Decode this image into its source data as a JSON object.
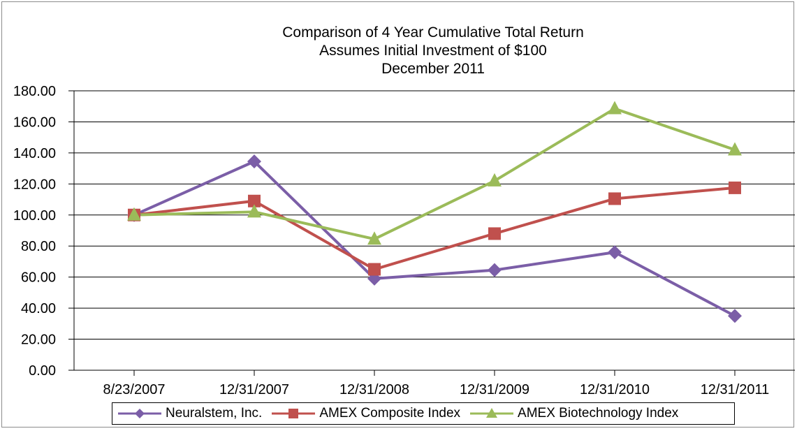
{
  "chart_data": {
    "type": "line",
    "title_lines": [
      "Comparison of 4 Year Cumulative Total Return",
      "Assumes Initial Investment of $100",
      "December 2011"
    ],
    "categories": [
      "8/23/2007",
      "12/31/2007",
      "12/31/2008",
      "12/31/2009",
      "12/31/2010",
      "12/31/2011"
    ],
    "ylim": [
      0,
      180
    ],
    "y_ticks": [
      "0.00",
      "20.00",
      "40.00",
      "60.00",
      "80.00",
      "100.00",
      "120.00",
      "140.00",
      "160.00",
      "180.00"
    ],
    "grid": "horizontal",
    "legend_position": "bottom",
    "series": [
      {
        "name": "Neuralstem, Inc.",
        "marker": "diamond",
        "color": "#7b5ea7",
        "values": [
          100,
          134.5,
          59,
          64.5,
          76,
          35
        ]
      },
      {
        "name": "AMEX Composite Index",
        "marker": "square",
        "color": "#c0504d",
        "values": [
          100,
          109,
          65,
          88,
          110.5,
          117.5
        ]
      },
      {
        "name": "AMEX Biotechnology Index",
        "marker": "triangle",
        "color": "#9bbb59",
        "values": [
          100,
          102,
          84.5,
          122,
          168.5,
          142
        ]
      }
    ]
  }
}
